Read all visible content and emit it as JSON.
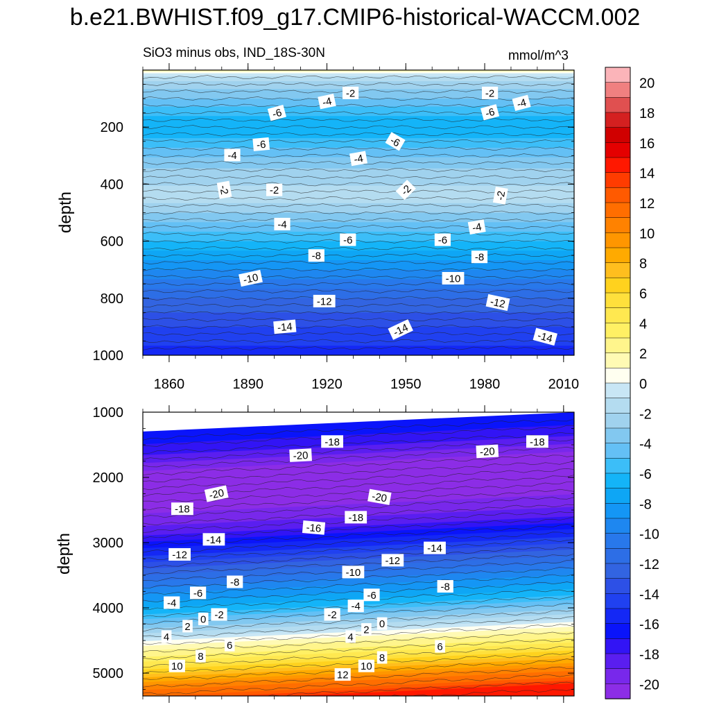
{
  "title": "b.e21.BWHIST.f09_g17.CMIP6-historical-WACCM.002",
  "chart_data": [
    {
      "type": "contour",
      "panel": "upper",
      "subtitle_left": "SiO3 minus obs, IND_18S-30N",
      "subtitle_right": "mmol/m^3",
      "ylabel": "depth",
      "xlabel": "",
      "xlim": [
        1850,
        2014
      ],
      "ylim": [
        1000,
        0
      ],
      "x_ticks": [
        1860,
        1890,
        1920,
        1950,
        1980,
        2010
      ],
      "y_ticks": [
        200,
        400,
        600,
        800,
        1000
      ],
      "depth_profile": [
        {
          "depth": 5,
          "value": 1
        },
        {
          "depth": 20,
          "value": -1
        },
        {
          "depth": 50,
          "value": -2.5
        },
        {
          "depth": 100,
          "value": -4
        },
        {
          "depth": 140,
          "value": -5.5
        },
        {
          "depth": 200,
          "value": -7
        },
        {
          "depth": 260,
          "value": -5.5
        },
        {
          "depth": 320,
          "value": -3.5
        },
        {
          "depth": 380,
          "value": -2.2
        },
        {
          "depth": 450,
          "value": -1.6
        },
        {
          "depth": 520,
          "value": -3.5
        },
        {
          "depth": 600,
          "value": -6
        },
        {
          "depth": 700,
          "value": -9
        },
        {
          "depth": 800,
          "value": -12
        },
        {
          "depth": 900,
          "value": -14
        },
        {
          "depth": 1000,
          "value": -15.5
        }
      ],
      "contour_labels": [
        {
          "x": 1920,
          "y": 110,
          "text": "-4",
          "rot": -12
        },
        {
          "x": 1929,
          "y": 80,
          "text": "-2",
          "rot": 0
        },
        {
          "x": 1982,
          "y": 80,
          "text": "-2",
          "rot": 0
        },
        {
          "x": 1994,
          "y": 115,
          "text": "-4",
          "rot": -15
        },
        {
          "x": 1901,
          "y": 150,
          "text": "-6",
          "rot": -15
        },
        {
          "x": 1982,
          "y": 148,
          "text": "-6",
          "rot": -15
        },
        {
          "x": 1895,
          "y": 260,
          "text": "-6",
          "rot": -5
        },
        {
          "x": 1946,
          "y": 250,
          "text": "-6",
          "rot": 30
        },
        {
          "x": 1884,
          "y": 298,
          "text": "-4",
          "rot": 0
        },
        {
          "x": 1932,
          "y": 310,
          "text": "-4",
          "rot": -10
        },
        {
          "x": 1881,
          "y": 420,
          "text": "-2",
          "rot": 80
        },
        {
          "x": 1900,
          "y": 420,
          "text": "-2",
          "rot": 0
        },
        {
          "x": 1950,
          "y": 420,
          "text": "-2",
          "rot": -45
        },
        {
          "x": 1986,
          "y": 440,
          "text": "-2",
          "rot": -80
        },
        {
          "x": 1903,
          "y": 540,
          "text": "-4",
          "rot": 0
        },
        {
          "x": 1977,
          "y": 550,
          "text": "-4",
          "rot": -10
        },
        {
          "x": 1928,
          "y": 595,
          "text": "-6",
          "rot": 0
        },
        {
          "x": 1964,
          "y": 595,
          "text": "-6",
          "rot": 0
        },
        {
          "x": 1916,
          "y": 650,
          "text": "-8",
          "rot": 0
        },
        {
          "x": 1978,
          "y": 655,
          "text": "-8",
          "rot": 0
        },
        {
          "x": 1891,
          "y": 730,
          "text": "-10",
          "rot": -12
        },
        {
          "x": 1968,
          "y": 730,
          "text": "-10",
          "rot": 0
        },
        {
          "x": 1919,
          "y": 810,
          "text": "-12",
          "rot": 0
        },
        {
          "x": 1985,
          "y": 815,
          "text": "-12",
          "rot": 12
        },
        {
          "x": 1904,
          "y": 900,
          "text": "-14",
          "rot": -5
        },
        {
          "x": 1948,
          "y": 910,
          "text": "-14",
          "rot": -25
        },
        {
          "x": 2003,
          "y": 935,
          "text": "-14",
          "rot": 15
        }
      ]
    },
    {
      "type": "contour",
      "panel": "lower",
      "ylabel": "depth",
      "xlim": [
        1850,
        2014
      ],
      "ylim": [
        5350,
        1000
      ],
      "y_ticks": [
        1000,
        2000,
        3000,
        4000,
        5000
      ],
      "depth_profile": [
        {
          "depth": 1000,
          "value": -16
        },
        {
          "depth": 1300,
          "value": -17.5
        },
        {
          "depth": 1500,
          "value": -19.2
        },
        {
          "depth": 1700,
          "value": -20.6
        },
        {
          "depth": 2150,
          "value": -20.5
        },
        {
          "depth": 2450,
          "value": -19
        },
        {
          "depth": 2650,
          "value": -17.5
        },
        {
          "depth": 3000,
          "value": -14
        },
        {
          "depth": 3400,
          "value": -10
        },
        {
          "depth": 3800,
          "value": -6
        },
        {
          "depth": 4100,
          "value": -2
        },
        {
          "depth": 4250,
          "value": 0.5
        },
        {
          "depth": 4600,
          "value": 5
        },
        {
          "depth": 4900,
          "value": 10
        },
        {
          "depth": 5050,
          "value": 12
        },
        {
          "depth": 5150,
          "value": 14
        },
        {
          "depth": 5350,
          "value": 14.5
        }
      ],
      "contour_labels": [
        {
          "x": 1922,
          "y": 1450,
          "text": "-18",
          "rot": 0
        },
        {
          "x": 2000,
          "y": 1450,
          "text": "-18",
          "rot": 0
        },
        {
          "x": 1910,
          "y": 1660,
          "text": "-20",
          "rot": -3
        },
        {
          "x": 1981,
          "y": 1600,
          "text": "-20",
          "rot": -3
        },
        {
          "x": 1878,
          "y": 2250,
          "text": "-20",
          "rot": -12
        },
        {
          "x": 1940,
          "y": 2300,
          "text": "-20",
          "rot": 10
        },
        {
          "x": 1865,
          "y": 2480,
          "text": "-18",
          "rot": 0
        },
        {
          "x": 1931,
          "y": 2610,
          "text": "-18",
          "rot": 0
        },
        {
          "x": 1915,
          "y": 2770,
          "text": "-16",
          "rot": 5
        },
        {
          "x": 1877,
          "y": 2950,
          "text": "-14",
          "rot": 0
        },
        {
          "x": 1961,
          "y": 3080,
          "text": "-14",
          "rot": 0
        },
        {
          "x": 1864,
          "y": 3180,
          "text": "-12",
          "rot": 0
        },
        {
          "x": 1945,
          "y": 3270,
          "text": "-12",
          "rot": 0
        },
        {
          "x": 1930,
          "y": 3450,
          "text": "-10",
          "rot": 0
        },
        {
          "x": 1885,
          "y": 3600,
          "text": "-8",
          "rot": 0
        },
        {
          "x": 1965,
          "y": 3670,
          "text": "-8",
          "rot": 0
        },
        {
          "x": 1871,
          "y": 3770,
          "text": "-6",
          "rot": 0
        },
        {
          "x": 1937,
          "y": 3800,
          "text": "-6",
          "rot": 0
        },
        {
          "x": 1861,
          "y": 3920,
          "text": "-4",
          "rot": 0
        },
        {
          "x": 1931,
          "y": 3970,
          "text": "-4",
          "rot": 0
        },
        {
          "x": 1879,
          "y": 4100,
          "text": "-2",
          "rot": 0
        },
        {
          "x": 1922,
          "y": 4100,
          "text": "-2",
          "rot": 0
        },
        {
          "x": 1873,
          "y": 4170,
          "text": "0",
          "rot": 0
        },
        {
          "x": 1941,
          "y": 4240,
          "text": "0",
          "rot": 0
        },
        {
          "x": 1867,
          "y": 4280,
          "text": "2",
          "rot": 0
        },
        {
          "x": 1935,
          "y": 4330,
          "text": "2",
          "rot": 0
        },
        {
          "x": 1859,
          "y": 4440,
          "text": "4",
          "rot": 0
        },
        {
          "x": 1929,
          "y": 4440,
          "text": "4",
          "rot": 0
        },
        {
          "x": 1883,
          "y": 4570,
          "text": "6",
          "rot": 0
        },
        {
          "x": 1963,
          "y": 4590,
          "text": "6",
          "rot": 0
        },
        {
          "x": 1872,
          "y": 4740,
          "text": "8",
          "rot": 0
        },
        {
          "x": 1941,
          "y": 4760,
          "text": "8",
          "rot": 0
        },
        {
          "x": 1863,
          "y": 4890,
          "text": "10",
          "rot": 0
        },
        {
          "x": 1935,
          "y": 4890,
          "text": "10",
          "rot": 0
        },
        {
          "x": 1926,
          "y": 5020,
          "text": "12",
          "rot": 0
        }
      ]
    }
  ],
  "colorbar": {
    "tick_labels": [
      "20",
      "18",
      "16",
      "14",
      "12",
      "10",
      "8",
      "6",
      "4",
      "2",
      "0",
      "-2",
      "-4",
      "-6",
      "-8",
      "-10",
      "-12",
      "-14",
      "-16",
      "-18",
      "-20"
    ],
    "bands": [
      {
        "lo": 20,
        "color": "#fbb4b9"
      },
      {
        "lo": 19,
        "color": "#f08080"
      },
      {
        "lo": 18,
        "color": "#e05050"
      },
      {
        "lo": 17,
        "color": "#d42020"
      },
      {
        "lo": 16,
        "color": "#d00000"
      },
      {
        "lo": 15,
        "color": "#e40000"
      },
      {
        "lo": 14,
        "color": "#ff1800"
      },
      {
        "lo": 13,
        "color": "#ff3c00"
      },
      {
        "lo": 12,
        "color": "#ff5a00"
      },
      {
        "lo": 11,
        "color": "#ff6e00"
      },
      {
        "lo": 10,
        "color": "#ff8200"
      },
      {
        "lo": 9,
        "color": "#ff9600"
      },
      {
        "lo": 8,
        "color": "#ffaa00"
      },
      {
        "lo": 7,
        "color": "#ffbe1e"
      },
      {
        "lo": 6,
        "color": "#ffd21e"
      },
      {
        "lo": 5,
        "color": "#ffe03c"
      },
      {
        "lo": 4,
        "color": "#ffe850"
      },
      {
        "lo": 3,
        "color": "#fff064"
      },
      {
        "lo": 2,
        "color": "#fff58c"
      },
      {
        "lo": 1,
        "color": "#fffab4"
      },
      {
        "lo": 0,
        "color": "#fffff0"
      },
      {
        "lo": -1,
        "color": "#c8e6f5"
      },
      {
        "lo": -2,
        "color": "#b4dcf0"
      },
      {
        "lo": -3,
        "color": "#a0d2ee"
      },
      {
        "lo": -4,
        "color": "#82c8f0"
      },
      {
        "lo": -5,
        "color": "#64c0f5"
      },
      {
        "lo": -6,
        "color": "#3cbef8"
      },
      {
        "lo": -7,
        "color": "#14b4f8"
      },
      {
        "lo": -8,
        "color": "#0ea6f5"
      },
      {
        "lo": -9,
        "color": "#1496f5"
      },
      {
        "lo": -10,
        "color": "#1e87f0"
      },
      {
        "lo": -11,
        "color": "#2878eb"
      },
      {
        "lo": -12,
        "color": "#2d6ee6"
      },
      {
        "lo": -13,
        "color": "#3264e1"
      },
      {
        "lo": -14,
        "color": "#2d50e6"
      },
      {
        "lo": -15,
        "color": "#2041f0"
      },
      {
        "lo": -16,
        "color": "#1428f5"
      },
      {
        "lo": -17,
        "color": "#0a14fa"
      },
      {
        "lo": -18,
        "color": "#3214f5"
      },
      {
        "lo": -19,
        "color": "#5a1ef0"
      },
      {
        "lo": -20,
        "color": "#7828eb"
      },
      {
        "lo": -21,
        "color": "#8c2de6"
      }
    ]
  }
}
